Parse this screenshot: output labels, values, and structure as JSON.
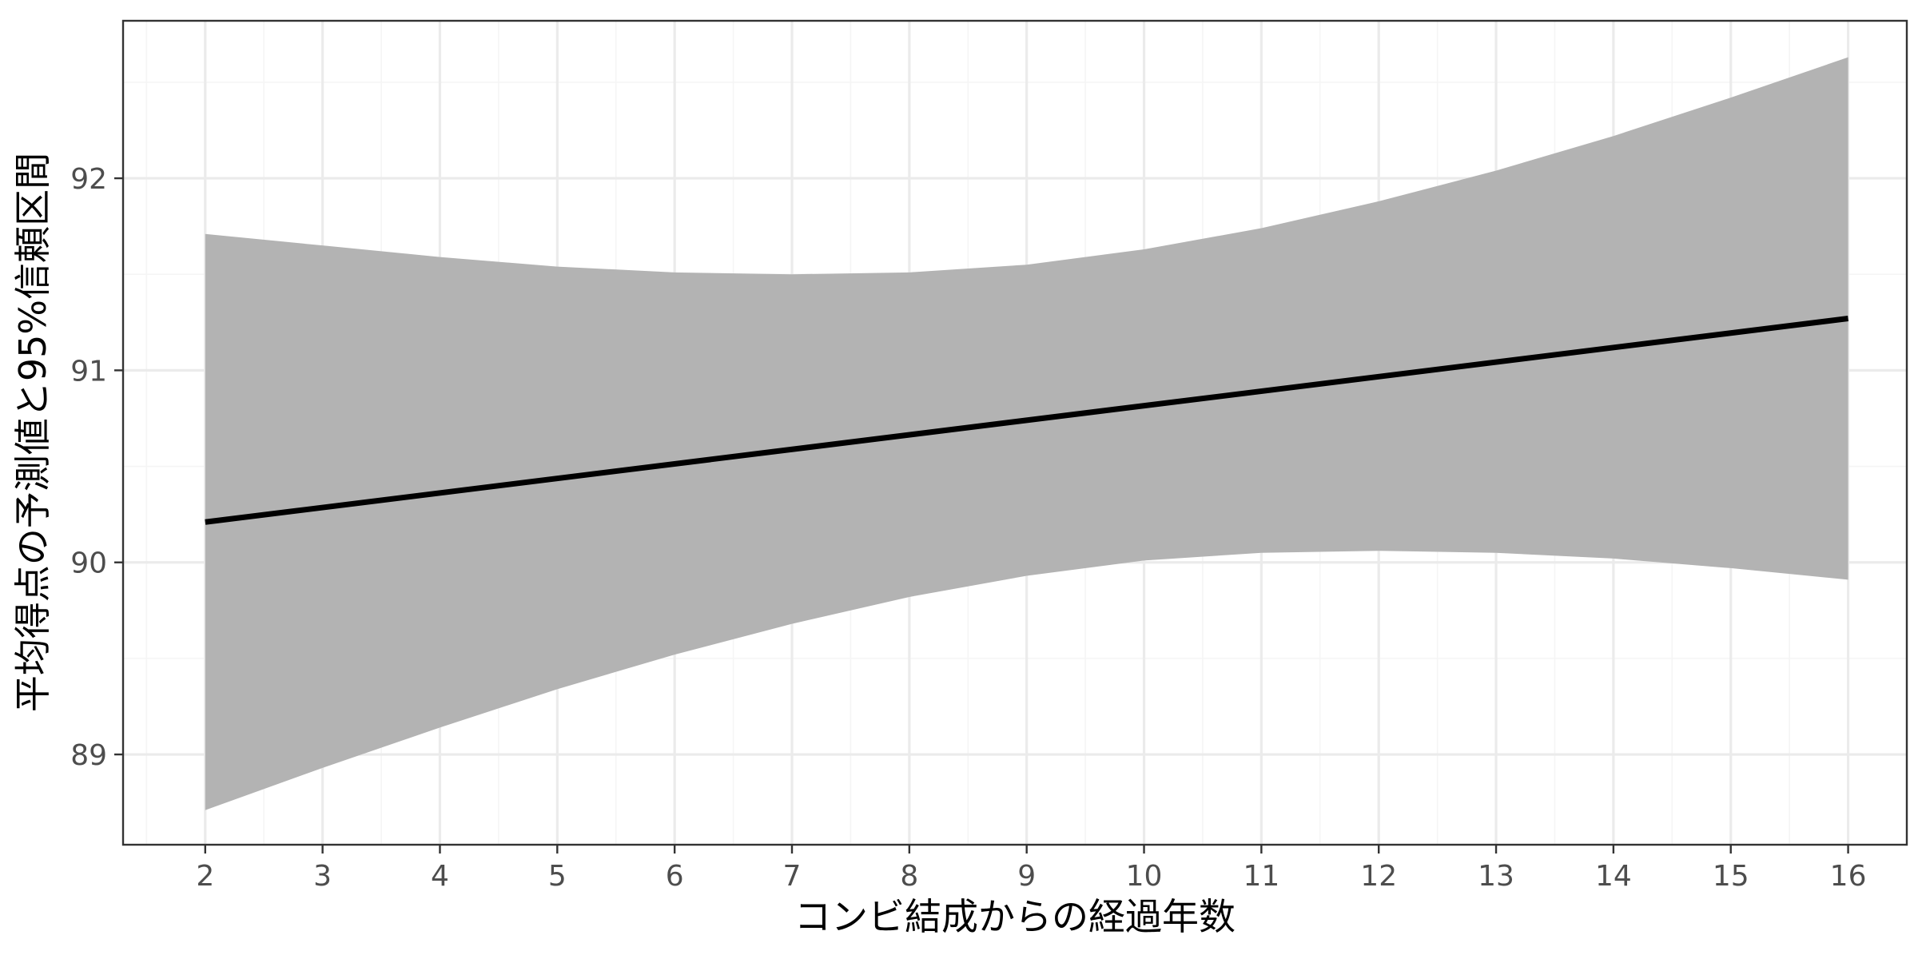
{
  "chart_data": {
    "type": "line",
    "title": "",
    "xlabel": "コンビ結成からの経過年数",
    "ylabel": "平均得点の予測値と95%信頼区間",
    "xlim": [
      1.3,
      16.5
    ],
    "ylim": [
      88.53,
      92.82
    ],
    "x_ticks": [
      2,
      3,
      4,
      5,
      6,
      7,
      8,
      9,
      10,
      11,
      12,
      13,
      14,
      15,
      16
    ],
    "x_tick_labels": [
      "2",
      "3",
      "4",
      "5",
      "6",
      "7",
      "8",
      "9",
      "10",
      "11",
      "12",
      "13",
      "14",
      "15",
      "16"
    ],
    "y_ticks": [
      89,
      90,
      91,
      92
    ],
    "y_tick_labels": [
      "89",
      "90",
      "91",
      "92"
    ],
    "grid": true,
    "legend": "none",
    "colors": {
      "line": "#000000",
      "ribbon": "#b3b3b3",
      "grid_major": "#ebebeb",
      "grid_minor": "#f5f5f5",
      "panel_border": "#333333"
    },
    "series": [
      {
        "x": [
          2,
          16
        ],
        "fit": [
          90.21,
          91.27
        ]
      }
    ],
    "ribbon": {
      "x": [
        2,
        3,
        4,
        5,
        6,
        7,
        8,
        9,
        10,
        11,
        12,
        13,
        14,
        15,
        16
      ],
      "lower": [
        88.71,
        88.93,
        89.14,
        89.34,
        89.52,
        89.68,
        89.82,
        89.93,
        90.01,
        90.05,
        90.06,
        90.05,
        90.02,
        89.97,
        89.91
      ],
      "upper": [
        91.71,
        91.65,
        91.59,
        91.54,
        91.51,
        91.5,
        91.51,
        91.55,
        91.63,
        91.74,
        91.88,
        92.04,
        92.22,
        92.42,
        92.63
      ]
    }
  }
}
